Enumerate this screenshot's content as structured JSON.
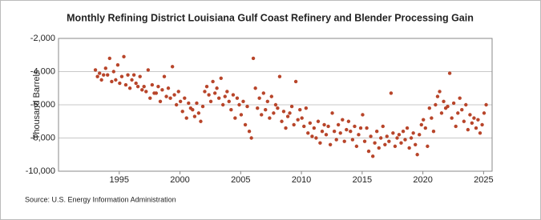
{
  "chart_data": {
    "type": "scatter",
    "title": "Monthly Refining District Louisiana Gulf Coast Refinery and Blender Processing Gain",
    "y_label": "Thousand Barrels",
    "source": "Source: U.S. Energy Information Administration",
    "color": "#b8452a",
    "grid": true,
    "xlim": [
      1990,
      2025.7
    ],
    "xticks": [
      1995,
      2000,
      2005,
      2010,
      2015,
      2020,
      2025
    ],
    "ylim": [
      -10000,
      -2000
    ],
    "yticks": [
      {
        "value": -10000,
        "label": "-10,000"
      },
      {
        "value": -8000,
        "label": "-8,000"
      },
      {
        "value": -6000,
        "label": "-6,000"
      },
      {
        "value": -4000,
        "label": "-4,000"
      },
      {
        "value": -2000,
        "label": "-2,000"
      }
    ],
    "x": [
      1993.04,
      1993.21,
      1993.38,
      1993.54,
      1993.71,
      1993.88,
      1994.04,
      1994.21,
      1994.38,
      1994.54,
      1994.71,
      1994.88,
      1995.04,
      1995.21,
      1995.38,
      1995.54,
      1995.71,
      1995.88,
      1996.04,
      1996.21,
      1996.38,
      1996.54,
      1996.71,
      1996.88,
      1997.04,
      1997.21,
      1997.38,
      1997.54,
      1997.71,
      1997.88,
      1998.04,
      1998.21,
      1998.38,
      1998.54,
      1998.71,
      1998.88,
      1999.04,
      1999.21,
      1999.38,
      1999.54,
      1999.71,
      1999.88,
      2000.04,
      2000.21,
      2000.38,
      2000.54,
      2000.71,
      2000.88,
      2001.04,
      2001.21,
      2001.38,
      2001.54,
      2001.71,
      2001.88,
      2002.04,
      2002.21,
      2002.38,
      2002.54,
      2002.71,
      2002.88,
      2003.04,
      2003.21,
      2003.38,
      2003.54,
      2003.71,
      2003.88,
      2004.04,
      2004.21,
      2004.38,
      2004.54,
      2004.71,
      2004.88,
      2005.04,
      2005.21,
      2005.38,
      2005.54,
      2005.71,
      2005.88,
      2006.04,
      2006.21,
      2006.38,
      2006.54,
      2006.71,
      2006.88,
      2007.04,
      2007.21,
      2007.38,
      2007.54,
      2007.71,
      2007.88,
      2008.04,
      2008.21,
      2008.38,
      2008.54,
      2008.71,
      2008.88,
      2009.04,
      2009.21,
      2009.38,
      2009.54,
      2009.71,
      2009.88,
      2010.04,
      2010.21,
      2010.38,
      2010.54,
      2010.71,
      2010.88,
      2011.04,
      2011.21,
      2011.38,
      2011.54,
      2011.71,
      2011.88,
      2012.04,
      2012.21,
      2012.38,
      2012.54,
      2012.71,
      2012.88,
      2013.04,
      2013.21,
      2013.38,
      2013.54,
      2013.71,
      2013.88,
      2014.04,
      2014.21,
      2014.38,
      2014.54,
      2014.71,
      2014.88,
      2015.04,
      2015.21,
      2015.38,
      2015.54,
      2015.71,
      2015.88,
      2016.04,
      2016.21,
      2016.38,
      2016.54,
      2016.71,
      2016.88,
      2017.04,
      2017.21,
      2017.38,
      2017.54,
      2017.71,
      2017.88,
      2018.04,
      2018.21,
      2018.38,
      2018.54,
      2018.71,
      2018.88,
      2019.04,
      2019.21,
      2019.38,
      2019.54,
      2019.71,
      2019.88,
      2020.04,
      2020.21,
      2020.38,
      2020.54,
      2020.71,
      2020.88,
      2021.04,
      2021.21,
      2021.38,
      2021.54,
      2021.71,
      2021.88,
      2022.04,
      2022.21,
      2022.38,
      2022.54,
      2022.71,
      2022.88,
      2023.04,
      2023.21,
      2023.38,
      2023.54,
      2023.71,
      2023.88,
      2024.04,
      2024.21,
      2024.38,
      2024.54,
      2024.71,
      2024.88,
      2025.04,
      2025.21
    ],
    "values": [
      -3900,
      -4300,
      -4100,
      -4500,
      -4200,
      -3800,
      -4200,
      -3200,
      -4600,
      -4000,
      -4500,
      -3600,
      -4700,
      -4300,
      -3100,
      -4800,
      -4200,
      -5000,
      -4500,
      -4200,
      -4700,
      -4900,
      -4300,
      -5100,
      -4900,
      -5200,
      -3900,
      -5600,
      -4800,
      -5300,
      -5300,
      -4900,
      -5800,
      -5100,
      -4300,
      -5500,
      -5000,
      -5600,
      -3700,
      -5400,
      -6000,
      -5200,
      -5800,
      -6400,
      -5600,
      -6800,
      -5900,
      -6200,
      -6300,
      -6700,
      -5900,
      -6500,
      -7000,
      -6100,
      -5200,
      -4900,
      -5400,
      -5800,
      -4600,
      -5300,
      -5000,
      -5600,
      -4400,
      -6000,
      -5500,
      -5200,
      -5800,
      -6300,
      -5400,
      -6800,
      -5600,
      -6000,
      -6600,
      -5800,
      -7200,
      -6100,
      -7600,
      -8000,
      -3200,
      -5000,
      -6200,
      -5600,
      -6600,
      -5300,
      -6300,
      -5800,
      -6800,
      -5500,
      -6500,
      -6000,
      -6200,
      -4300,
      -7000,
      -6400,
      -7400,
      -6700,
      -6500,
      -6100,
      -7200,
      -4600,
      -6900,
      -6300,
      -6800,
      -7300,
      -6200,
      -7700,
      -7100,
      -7900,
      -7400,
      -8000,
      -7000,
      -8300,
      -7600,
      -7200,
      -7800,
      -7300,
      -8400,
      -6500,
      -7600,
      -8100,
      -7200,
      -7700,
      -6900,
      -8200,
      -7500,
      -7000,
      -7600,
      -8100,
      -7300,
      -8500,
      -7800,
      -7400,
      -6600,
      -8200,
      -7400,
      -8800,
      -7900,
      -9100,
      -8300,
      -7600,
      -8600,
      -8000,
      -7300,
      -8400,
      -7900,
      -8200,
      -5300,
      -7700,
      -8500,
      -8000,
      -7800,
      -8300,
      -7600,
      -8100,
      -7400,
      -8600,
      -8000,
      -7700,
      -8400,
      -9000,
      -7800,
      -7200,
      -6900,
      -7400,
      -8500,
      -6200,
      -6800,
      -7600,
      -6000,
      -5500,
      -5200,
      -6500,
      -5800,
      -6200,
      -6100,
      -4100,
      -6800,
      -5900,
      -7300,
      -6500,
      -5600,
      -6300,
      -7000,
      -6000,
      -7500,
      -6600,
      -7100,
      -6800,
      -7400,
      -6900,
      -7700,
      -7200,
      -6500,
      -6000
    ]
  }
}
